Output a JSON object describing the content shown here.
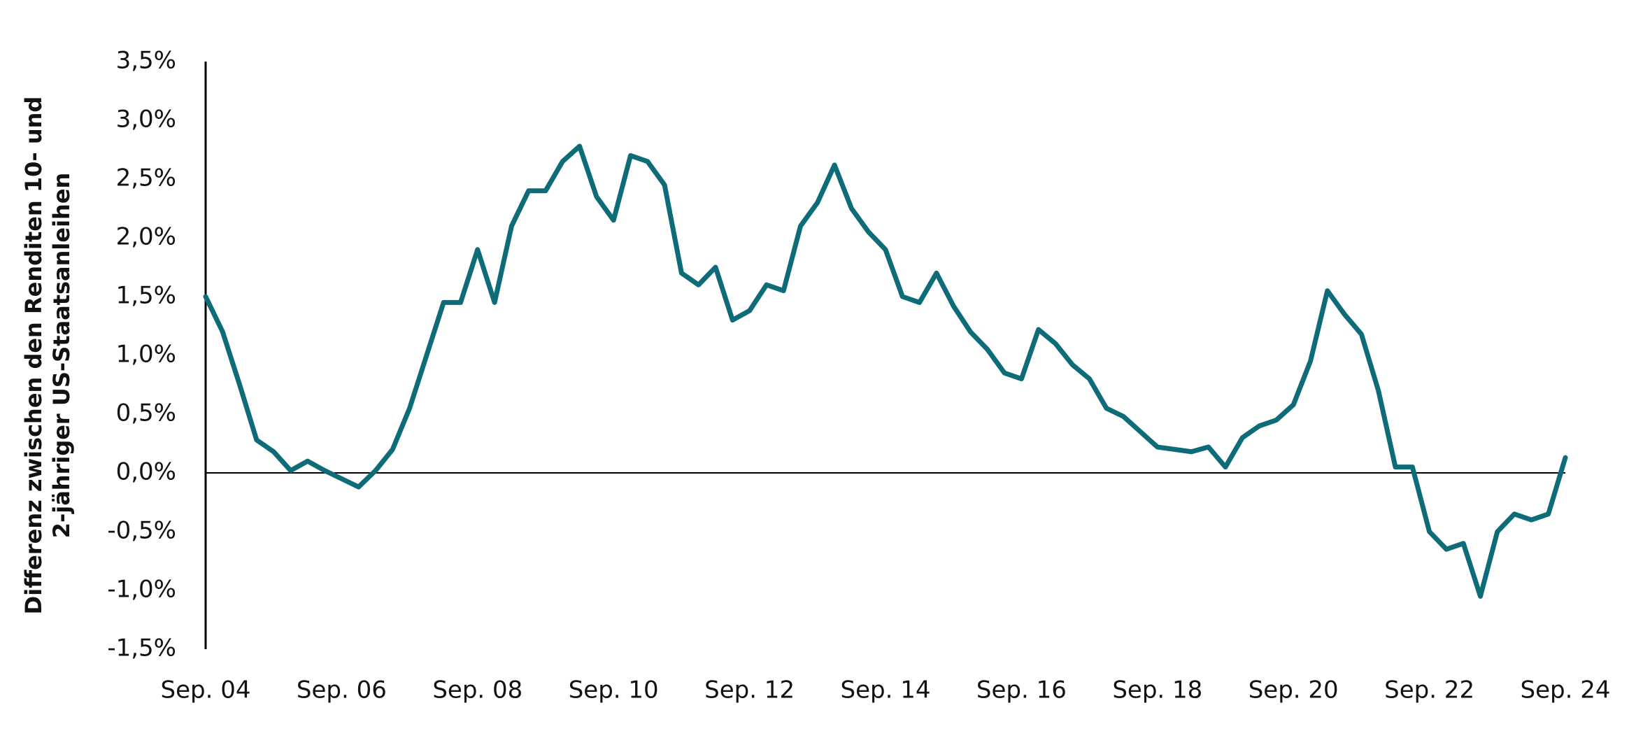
{
  "chart_data": {
    "type": "line",
    "y_label": [
      "Differenz zwischen den Renditen 10- und",
      "2-jähriger US-Staatsanleihen"
    ],
    "x": [
      2004.667,
      2004.917,
      2005.167,
      2005.417,
      2005.667,
      2005.917,
      2006.167,
      2006.417,
      2006.667,
      2006.917,
      2007.167,
      2007.417,
      2007.667,
      2007.917,
      2008.167,
      2008.417,
      2008.667,
      2008.917,
      2009.167,
      2009.417,
      2009.667,
      2009.917,
      2010.167,
      2010.417,
      2010.667,
      2010.917,
      2011.167,
      2011.417,
      2011.667,
      2011.917,
      2012.167,
      2012.417,
      2012.667,
      2012.917,
      2013.167,
      2013.417,
      2013.667,
      2013.917,
      2014.167,
      2014.417,
      2014.667,
      2014.917,
      2015.167,
      2015.417,
      2015.667,
      2015.917,
      2016.167,
      2016.417,
      2016.667,
      2016.917,
      2017.167,
      2017.417,
      2017.667,
      2017.917,
      2018.167,
      2018.417,
      2018.667,
      2018.917,
      2019.167,
      2019.417,
      2019.667,
      2019.917,
      2020.167,
      2020.417,
      2020.667,
      2020.917,
      2021.167,
      2021.417,
      2021.667,
      2021.917,
      2022.167,
      2022.417,
      2022.667,
      2022.917,
      2023.167,
      2023.417,
      2023.667,
      2023.917,
      2024.167,
      2024.417,
      2024.667
    ],
    "series": [
      {
        "color": "#0e6b78",
        "values": [
          1.5,
          1.2,
          0.75,
          0.28,
          0.18,
          0.02,
          0.1,
          0.02,
          -0.05,
          -0.12,
          0.02,
          0.2,
          0.55,
          1.0,
          1.45,
          1.45,
          1.9,
          1.45,
          2.1,
          2.4,
          2.4,
          2.65,
          2.78,
          2.35,
          2.15,
          2.7,
          2.65,
          2.45,
          1.7,
          1.6,
          1.75,
          1.3,
          1.38,
          1.6,
          1.55,
          2.1,
          2.3,
          2.62,
          2.25,
          2.05,
          1.9,
          1.5,
          1.45,
          1.7,
          1.42,
          1.2,
          1.05,
          0.85,
          0.8,
          1.22,
          1.1,
          0.92,
          0.8,
          0.55,
          0.48,
          0.35,
          0.22,
          0.2,
          0.18,
          0.22,
          0.05,
          0.3,
          0.4,
          0.45,
          0.58,
          0.95,
          1.55,
          1.35,
          1.18,
          0.7,
          0.05,
          0.05,
          -0.5,
          -0.65,
          -0.6,
          -1.05,
          -0.5,
          -0.35,
          -0.4,
          -0.35,
          0.13
        ]
      }
    ],
    "xlim": [
      2004.667,
      2024.667
    ],
    "xticks": [
      {
        "value": 2004.667,
        "label": "Sep. 04"
      },
      {
        "value": 2006.667,
        "label": "Sep. 06"
      },
      {
        "value": 2008.667,
        "label": "Sep. 08"
      },
      {
        "value": 2010.667,
        "label": "Sep. 10"
      },
      {
        "value": 2012.667,
        "label": "Sep. 12"
      },
      {
        "value": 2014.667,
        "label": "Sep. 14"
      },
      {
        "value": 2016.667,
        "label": "Sep. 16"
      },
      {
        "value": 2018.667,
        "label": "Sep. 18"
      },
      {
        "value": 2020.667,
        "label": "Sep. 20"
      },
      {
        "value": 2022.667,
        "label": "Sep. 22"
      },
      {
        "value": 2024.667,
        "label": "Sep. 24"
      }
    ],
    "ylim": [
      -1.5,
      3.5
    ],
    "yticks": [
      {
        "value": -1.5,
        "label": "-1,5%"
      },
      {
        "value": -1.0,
        "label": "-1,0%"
      },
      {
        "value": -0.5,
        "label": "-0,5%"
      },
      {
        "value": 0,
        "label": "0,0%"
      },
      {
        "value": 0.5,
        "label": "0,5%"
      },
      {
        "value": 1.0,
        "label": "1,0%"
      },
      {
        "value": 1.5,
        "label": "1,5%"
      },
      {
        "value": 2.0,
        "label": "2,0%"
      },
      {
        "value": 2.5,
        "label": "2,5%"
      },
      {
        "value": 3.0,
        "label": "3,0%"
      },
      {
        "value": 3.5,
        "label": "3,5%"
      }
    ],
    "grid": false
  }
}
